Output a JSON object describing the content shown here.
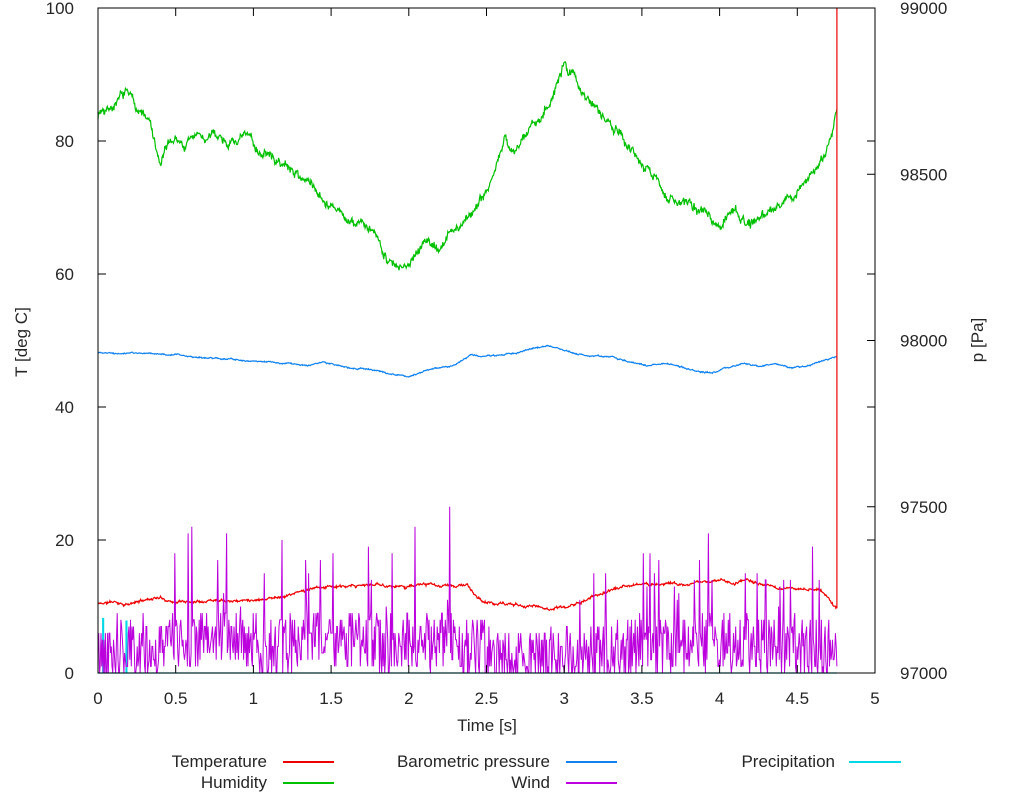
{
  "chart_data": {
    "type": "line",
    "title": "",
    "xlabel": "Time [s]",
    "ylabel": "T [deg C]",
    "y2label": "p [Pa]",
    "xlim": [
      0,
      5
    ],
    "ylim": [
      0,
      100
    ],
    "y2lim": [
      97000,
      99000
    ],
    "x_end_of_data": 4.755,
    "grid": false,
    "legend_position": "below-two-rows",
    "axis_color": "#000000",
    "text_color": "#262626",
    "xticks": [
      [
        0,
        "0"
      ],
      [
        0.5,
        "0.5"
      ],
      [
        1,
        "1"
      ],
      [
        1.5,
        "1.5"
      ],
      [
        2,
        "2"
      ],
      [
        2.5,
        "2.5"
      ],
      [
        3,
        "3"
      ],
      [
        3.5,
        "3.5"
      ],
      [
        4,
        "4"
      ],
      [
        4.5,
        "4.5"
      ],
      [
        5,
        "5"
      ]
    ],
    "yticks": [
      [
        0,
        "0"
      ],
      [
        20,
        "20"
      ],
      [
        40,
        "40"
      ],
      [
        60,
        "60"
      ],
      [
        80,
        "80"
      ],
      [
        100,
        "100"
      ]
    ],
    "y2ticks": [
      [
        97000,
        "97000"
      ],
      [
        97500,
        "97500"
      ],
      [
        98000,
        "98000"
      ],
      [
        98500,
        "98500"
      ],
      [
        99000,
        "99000"
      ]
    ],
    "series": [
      {
        "name": "Temperature",
        "color": "#ee0000",
        "axis": "left",
        "style": "noisy-line",
        "samples": 1300,
        "seed": 11,
        "noise": 0.12,
        "walk": 0.1,
        "decay": 0.9,
        "end_spike_to": 100,
        "anchors": [
          [
            0,
            10.4
          ],
          [
            0.1,
            10.7
          ],
          [
            0.2,
            10.3
          ],
          [
            0.3,
            11.0
          ],
          [
            0.38,
            11.4
          ],
          [
            0.5,
            10.7
          ],
          [
            0.6,
            10.8
          ],
          [
            0.7,
            11.0
          ],
          [
            0.8,
            11.2
          ],
          [
            0.9,
            10.9
          ],
          [
            1.0,
            11.1
          ],
          [
            1.1,
            11.3
          ],
          [
            1.2,
            11.6
          ],
          [
            1.3,
            12.2
          ],
          [
            1.4,
            12.7
          ],
          [
            1.5,
            13.1
          ],
          [
            1.6,
            12.8
          ],
          [
            1.7,
            13.1
          ],
          [
            1.8,
            13.3
          ],
          [
            1.9,
            13.0
          ],
          [
            2.0,
            13.1
          ],
          [
            2.1,
            13.3
          ],
          [
            2.2,
            13.0
          ],
          [
            2.3,
            13.1
          ],
          [
            2.38,
            13.2
          ],
          [
            2.44,
            11.2
          ],
          [
            2.5,
            10.5
          ],
          [
            2.6,
            10.4
          ],
          [
            2.7,
            10.2
          ],
          [
            2.8,
            10.1
          ],
          [
            2.9,
            9.7
          ],
          [
            3.0,
            9.9
          ],
          [
            3.1,
            10.5
          ],
          [
            3.2,
            11.6
          ],
          [
            3.3,
            12.5
          ],
          [
            3.4,
            13.0
          ],
          [
            3.5,
            13.3
          ],
          [
            3.6,
            13.4
          ],
          [
            3.7,
            13.6
          ],
          [
            3.8,
            13.1
          ],
          [
            3.9,
            13.7
          ],
          [
            4.0,
            14.0
          ],
          [
            4.1,
            13.5
          ],
          [
            4.17,
            14.2
          ],
          [
            4.25,
            13.4
          ],
          [
            4.35,
            12.7
          ],
          [
            4.45,
            12.8
          ],
          [
            4.55,
            12.6
          ],
          [
            4.65,
            12.4
          ],
          [
            4.7,
            11.2
          ],
          [
            4.73,
            10.3
          ],
          [
            4.755,
            9.7
          ]
        ]
      },
      {
        "name": "Humidity",
        "color": "#00c000",
        "axis": "left",
        "style": "noisy-line",
        "samples": 1350,
        "seed": 7,
        "noise": 0.4,
        "walk": 0.4,
        "decay": 0.93,
        "anchors": [
          [
            0,
            84
          ],
          [
            0.05,
            85.5
          ],
          [
            0.12,
            86
          ],
          [
            0.2,
            87
          ],
          [
            0.27,
            84.5
          ],
          [
            0.33,
            83
          ],
          [
            0.4,
            76
          ],
          [
            0.45,
            79
          ],
          [
            0.5,
            80.5
          ],
          [
            0.55,
            79
          ],
          [
            0.62,
            81
          ],
          [
            0.7,
            80
          ],
          [
            0.78,
            81
          ],
          [
            0.85,
            80
          ],
          [
            0.95,
            80.5
          ],
          [
            1.05,
            78.5
          ],
          [
            1.15,
            77
          ],
          [
            1.25,
            75.5
          ],
          [
            1.35,
            74
          ],
          [
            1.45,
            72
          ],
          [
            1.5,
            70.5
          ],
          [
            1.55,
            69
          ],
          [
            1.65,
            67
          ],
          [
            1.7,
            68
          ],
          [
            1.75,
            66
          ],
          [
            1.85,
            63.5
          ],
          [
            1.9,
            61.5
          ],
          [
            1.95,
            60
          ],
          [
            2.0,
            62
          ],
          [
            2.05,
            64
          ],
          [
            2.1,
            65.5
          ],
          [
            2.15,
            64.5
          ],
          [
            2.2,
            64
          ],
          [
            2.3,
            67
          ],
          [
            2.4,
            69
          ],
          [
            2.5,
            73
          ],
          [
            2.55,
            76
          ],
          [
            2.6,
            79
          ],
          [
            2.62,
            80.5
          ],
          [
            2.68,
            78
          ],
          [
            2.72,
            79
          ],
          [
            2.78,
            82
          ],
          [
            2.85,
            84
          ],
          [
            2.9,
            86.5
          ],
          [
            2.95,
            88.5
          ],
          [
            3.0,
            91.5
          ],
          [
            3.05,
            90
          ],
          [
            3.1,
            88
          ],
          [
            3.18,
            86
          ],
          [
            3.25,
            84.5
          ],
          [
            3.3,
            83.5
          ],
          [
            3.38,
            81
          ],
          [
            3.45,
            78.5
          ],
          [
            3.5,
            76.5
          ],
          [
            3.55,
            75
          ],
          [
            3.65,
            72.5
          ],
          [
            3.7,
            71.5
          ],
          [
            3.8,
            70
          ],
          [
            3.9,
            69.5
          ],
          [
            3.95,
            68.5
          ],
          [
            4.0,
            67.5
          ],
          [
            4.05,
            69
          ],
          [
            4.1,
            70
          ],
          [
            4.15,
            68.5
          ],
          [
            4.2,
            68
          ],
          [
            4.3,
            69.5
          ],
          [
            4.4,
            71
          ],
          [
            4.5,
            72.5
          ],
          [
            4.55,
            74
          ],
          [
            4.6,
            75.5
          ],
          [
            4.65,
            77
          ],
          [
            4.7,
            79
          ],
          [
            4.73,
            81
          ],
          [
            4.755,
            84
          ]
        ]
      },
      {
        "name": "Barometric pressure",
        "color": "#0f82f0",
        "axis": "right",
        "style": "noisy-line",
        "samples": 1300,
        "seed": 21,
        "noise": 1.2,
        "walk": 1.2,
        "decay": 0.9,
        "anchors": [
          [
            0,
            97964
          ],
          [
            0.15,
            97962
          ],
          [
            0.3,
            97960
          ],
          [
            0.5,
            97958
          ],
          [
            0.7,
            97948
          ],
          [
            0.9,
            97942
          ],
          [
            1.05,
            97936
          ],
          [
            1.2,
            97932
          ],
          [
            1.35,
            97924
          ],
          [
            1.45,
            97934
          ],
          [
            1.6,
            97918
          ],
          [
            1.75,
            97912
          ],
          [
            1.9,
            97898
          ],
          [
            2.0,
            97892
          ],
          [
            2.1,
            97908
          ],
          [
            2.2,
            97918
          ],
          [
            2.3,
            97926
          ],
          [
            2.4,
            97956
          ],
          [
            2.5,
            97952
          ],
          [
            2.6,
            97958
          ],
          [
            2.7,
            97964
          ],
          [
            2.8,
            97976
          ],
          [
            2.9,
            97986
          ],
          [
            3.0,
            97968
          ],
          [
            3.15,
            97954
          ],
          [
            3.3,
            97950
          ],
          [
            3.45,
            97932
          ],
          [
            3.55,
            97924
          ],
          [
            3.65,
            97932
          ],
          [
            3.75,
            97920
          ],
          [
            3.85,
            97908
          ],
          [
            3.95,
            97902
          ],
          [
            4.05,
            97916
          ],
          [
            4.15,
            97932
          ],
          [
            4.25,
            97924
          ],
          [
            4.35,
            97928
          ],
          [
            4.45,
            97918
          ],
          [
            4.55,
            97922
          ],
          [
            4.65,
            97938
          ],
          [
            4.72,
            97946
          ],
          [
            4.755,
            97950
          ]
        ]
      },
      {
        "name": "Wind",
        "color": "#bb00dd",
        "axis": "left",
        "style": "spiky",
        "samples": 1000,
        "seed": 42,
        "jitter": 4.5,
        "spike_prob": 0.11,
        "quantize": 1,
        "anchors": [
          [
            0,
            3
          ],
          [
            0.1,
            3
          ],
          [
            0.2,
            2.5
          ],
          [
            0.35,
            3
          ],
          [
            0.5,
            5
          ],
          [
            0.6,
            5
          ],
          [
            0.75,
            5
          ],
          [
            0.9,
            6
          ],
          [
            1.0,
            5
          ],
          [
            1.1,
            4
          ],
          [
            1.2,
            4
          ],
          [
            1.35,
            5
          ],
          [
            1.5,
            5
          ],
          [
            1.6,
            5
          ],
          [
            1.75,
            5
          ],
          [
            1.9,
            4.5
          ],
          [
            2.0,
            5
          ],
          [
            2.1,
            4.5
          ],
          [
            2.25,
            5
          ],
          [
            2.35,
            4
          ],
          [
            2.45,
            3.5
          ],
          [
            2.55,
            2
          ],
          [
            2.65,
            2
          ],
          [
            2.75,
            2.5
          ],
          [
            2.85,
            2
          ],
          [
            2.95,
            2
          ],
          [
            3.05,
            2.5
          ],
          [
            3.15,
            2
          ],
          [
            3.25,
            3
          ],
          [
            3.35,
            3.5
          ],
          [
            3.45,
            4.5
          ],
          [
            3.55,
            4
          ],
          [
            3.65,
            4.5
          ],
          [
            3.75,
            4
          ],
          [
            3.85,
            4.5
          ],
          [
            3.95,
            5
          ],
          [
            4.05,
            4.5
          ],
          [
            4.15,
            4
          ],
          [
            4.25,
            4.5
          ],
          [
            4.35,
            4
          ],
          [
            4.45,
            3.5
          ],
          [
            4.55,
            4
          ],
          [
            4.65,
            4.5
          ],
          [
            4.7,
            3.5
          ],
          [
            4.755,
            4
          ]
        ],
        "env": [
          [
            0,
            8
          ],
          [
            0.3,
            12
          ],
          [
            0.5,
            25
          ],
          [
            0.65,
            22
          ],
          [
            0.78,
            29
          ],
          [
            0.9,
            34
          ],
          [
            1.0,
            24
          ],
          [
            1.15,
            20
          ],
          [
            1.3,
            20
          ],
          [
            1.45,
            24
          ],
          [
            1.55,
            22
          ],
          [
            1.7,
            28
          ],
          [
            1.85,
            25
          ],
          [
            2.0,
            30
          ],
          [
            2.15,
            26
          ],
          [
            2.3,
            28
          ],
          [
            2.45,
            18
          ],
          [
            2.6,
            10
          ],
          [
            2.75,
            9
          ],
          [
            2.9,
            12
          ],
          [
            3.05,
            14
          ],
          [
            3.2,
            15
          ],
          [
            3.35,
            22
          ],
          [
            3.5,
            24
          ],
          [
            3.65,
            18
          ],
          [
            3.8,
            22
          ],
          [
            3.95,
            21
          ],
          [
            4.1,
            22
          ],
          [
            4.25,
            20
          ],
          [
            4.4,
            18
          ],
          [
            4.55,
            20
          ],
          [
            4.65,
            22
          ],
          [
            4.7,
            12
          ],
          [
            4.755,
            10
          ]
        ]
      },
      {
        "name": "Precipitation",
        "color": "#00d8e8",
        "axis": "left",
        "style": "points",
        "points": [
          [
            0,
            0
          ],
          [
            0.03,
            0
          ],
          [
            0.03,
            8.2
          ],
          [
            0.036,
            8.2
          ],
          [
            0.036,
            0
          ],
          [
            0.18,
            0
          ],
          [
            0.18,
            7.8
          ],
          [
            0.186,
            7.8
          ],
          [
            0.186,
            0
          ],
          [
            4.755,
            0
          ]
        ]
      }
    ]
  }
}
